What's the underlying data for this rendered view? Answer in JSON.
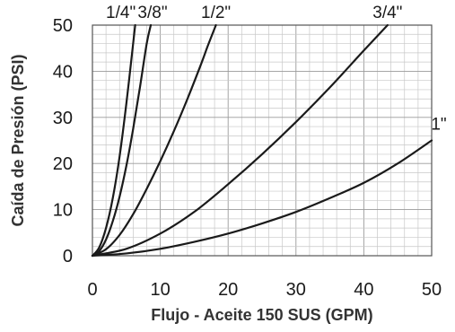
{
  "chart_data": {
    "type": "line",
    "title": "",
    "xlabel": "Flujo - Aceite 150 SUS (GPM)",
    "ylabel": "Caída de Presión (PSI)",
    "xlim": [
      0,
      50
    ],
    "ylim": [
      0,
      50
    ],
    "x_ticks": [
      "0",
      "10",
      "20",
      "30",
      "40",
      "50"
    ],
    "y_ticks": [
      "0",
      "10",
      "20",
      "30",
      "40",
      "50"
    ],
    "grid": true,
    "series": [
      {
        "name": "1/4\"",
        "x": [
          0,
          1,
          2,
          3,
          4,
          5,
          6,
          6.3
        ],
        "y": [
          0,
          1.8,
          6,
          12.5,
          21.5,
          33,
          46,
          50
        ]
      },
      {
        "name": "3/8\"",
        "x": [
          0,
          1,
          2,
          3,
          4,
          5,
          6,
          7,
          8,
          8.6
        ],
        "y": [
          0,
          1,
          3.5,
          7.5,
          12.8,
          19.5,
          27.5,
          36.5,
          46,
          50
        ]
      },
      {
        "name": "1/2\"",
        "x": [
          0,
          2,
          4,
          6,
          8,
          10,
          12,
          14,
          16,
          17,
          18.2
        ],
        "y": [
          0,
          1.4,
          4.5,
          9,
          14.5,
          20.5,
          27,
          34,
          41.5,
          45.5,
          50
        ]
      },
      {
        "name": "3/4\"",
        "x": [
          0,
          5,
          10,
          15,
          20,
          25,
          30,
          35,
          40,
          43.5
        ],
        "y": [
          0,
          1.5,
          4.8,
          9.5,
          15.5,
          22,
          29,
          36.5,
          44.5,
          50
        ]
      },
      {
        "name": "1\"",
        "x": [
          0,
          5,
          10,
          15,
          20,
          25,
          30,
          35,
          40,
          45,
          50
        ],
        "y": [
          0,
          0.5,
          1.5,
          3,
          4.8,
          7,
          9.5,
          12.5,
          15.8,
          20,
          25
        ]
      }
    ]
  }
}
